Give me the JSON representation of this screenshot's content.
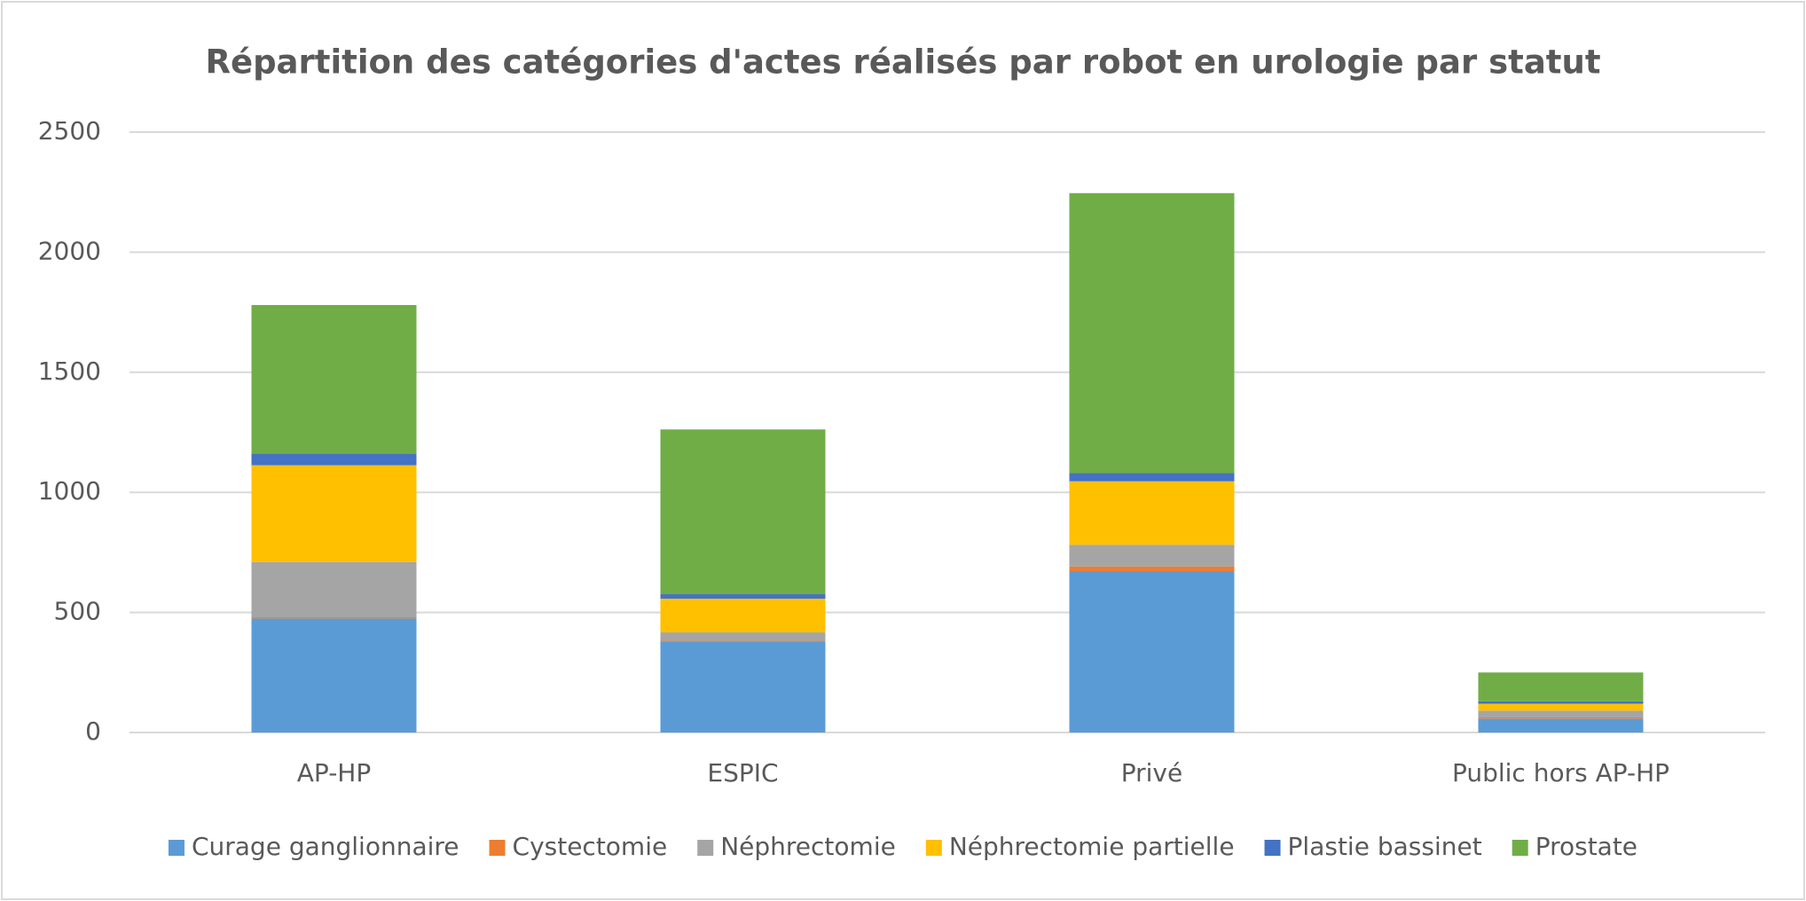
{
  "chart_data": {
    "type": "stacked_bar",
    "title": "Répartition des catégories d'actes réalisés par robot en urologie par statut",
    "categories": [
      "AP-HP",
      "ESPIC",
      "Privé",
      "Public hors AP-HP"
    ],
    "series": [
      {
        "name": "Curage ganglionnaire",
        "color": "#5b9bd5",
        "values": [
          475,
          379,
          672,
          58
        ]
      },
      {
        "name": "Cystectomie",
        "color": "#ed7d31",
        "values": [
          5,
          3,
          19,
          5
        ]
      },
      {
        "name": "Néphrectomie",
        "color": "#a5a5a5",
        "values": [
          230,
          35,
          91,
          28
        ]
      },
      {
        "name": "Néphrectomie partielle",
        "color": "#ffc000",
        "values": [
          403,
          140,
          264,
          29
        ]
      },
      {
        "name": "Plastie bassinet",
        "color": "#4472c4",
        "values": [
          48,
          19,
          34,
          10
        ]
      },
      {
        "name": "Prostate",
        "color": "#70ad47",
        "values": [
          619,
          686,
          1166,
          120
        ]
      }
    ],
    "ylim": [
      0,
      2500
    ],
    "yticks": [
      0,
      500,
      1000,
      1500,
      2000,
      2500
    ],
    "grid": true,
    "legend": "bottom"
  }
}
